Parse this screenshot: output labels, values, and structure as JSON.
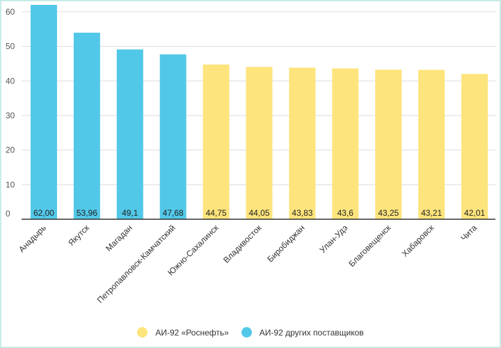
{
  "chart_data": {
    "type": "bar",
    "categories": [
      "Анадырь",
      "Якутск",
      "Магадан",
      "Петропавловск-Камчатский",
      "Южно-Сахалинск",
      "Владивосток",
      "Биробиджан",
      "Улан-Удэ",
      "Благовещенск",
      "Хабаровск",
      "Чита"
    ],
    "values": [
      62.0,
      53.96,
      49.1,
      47.68,
      44.75,
      44.05,
      43.83,
      43.6,
      43.25,
      43.21,
      42.01
    ],
    "value_labels": [
      "62,00",
      "53,96",
      "49,1",
      "47,68",
      "44,75",
      "44,05",
      "43,83",
      "43,6",
      "43,25",
      "43,21",
      "42,01"
    ],
    "series_index": [
      1,
      1,
      1,
      1,
      0,
      0,
      0,
      0,
      0,
      0,
      0
    ],
    "series": [
      {
        "name": "АИ-92 «Роснефть»",
        "color": "#fde47c"
      },
      {
        "name": "АИ-92 других поставщиков",
        "color": "#52c8e8"
      }
    ],
    "yticks": [
      0,
      10,
      20,
      30,
      40,
      50,
      60
    ],
    "ylim": [
      0,
      64
    ],
    "grid": true,
    "legend_position": "bottom",
    "title": "",
    "xlabel": "",
    "ylabel": ""
  }
}
